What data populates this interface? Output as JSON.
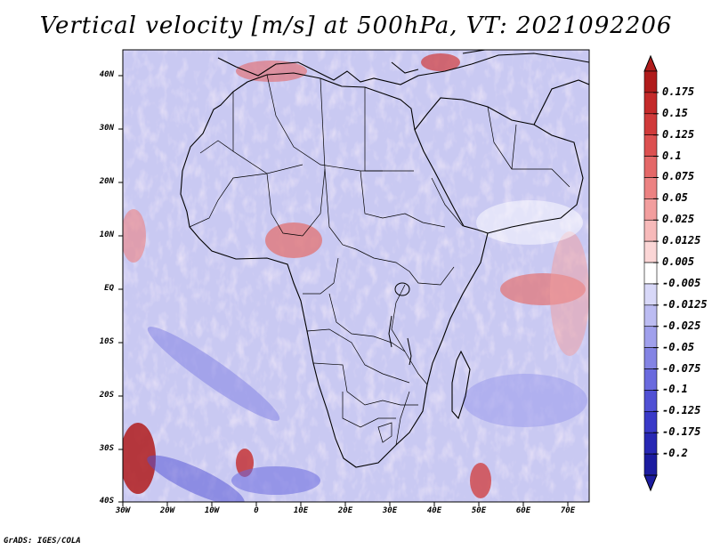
{
  "title": "Vertical velocity [m/s] at 500hPa, VT: 2021092206",
  "credit": "GrADS: IGES/COLA",
  "map": {
    "lat_labels": [
      "40N",
      "30N",
      "20N",
      "10N",
      "EQ",
      "10S",
      "20S",
      "30S",
      "40S"
    ],
    "lon_labels": [
      "30W",
      "20W",
      "10W",
      "0",
      "10E",
      "20E",
      "30E",
      "40E",
      "50E",
      "60E",
      "70E"
    ]
  },
  "colorbar": {
    "labels": [
      "0.175",
      "0.15",
      "0.125",
      "0.1",
      "0.075",
      "0.05",
      "0.025",
      "0.0125",
      "0.005",
      "-0.005",
      "-0.0125",
      "-0.025",
      "-0.05",
      "-0.075",
      "-0.1",
      "-0.125",
      "-0.175",
      "-0.2"
    ],
    "colors": [
      "#b01c1c",
      "#c42a2a",
      "#d03a3a",
      "#dc5050",
      "#e46868",
      "#ec8282",
      "#f29e9e",
      "#f7baba",
      "#fbd6d6",
      "#ffffff",
      "#d8d8f8",
      "#bcbcf2",
      "#a0a0ec",
      "#8484e4",
      "#6a6ade",
      "#5050d4",
      "#3a3ac8",
      "#2828b4",
      "#1c1ca0"
    ]
  }
}
